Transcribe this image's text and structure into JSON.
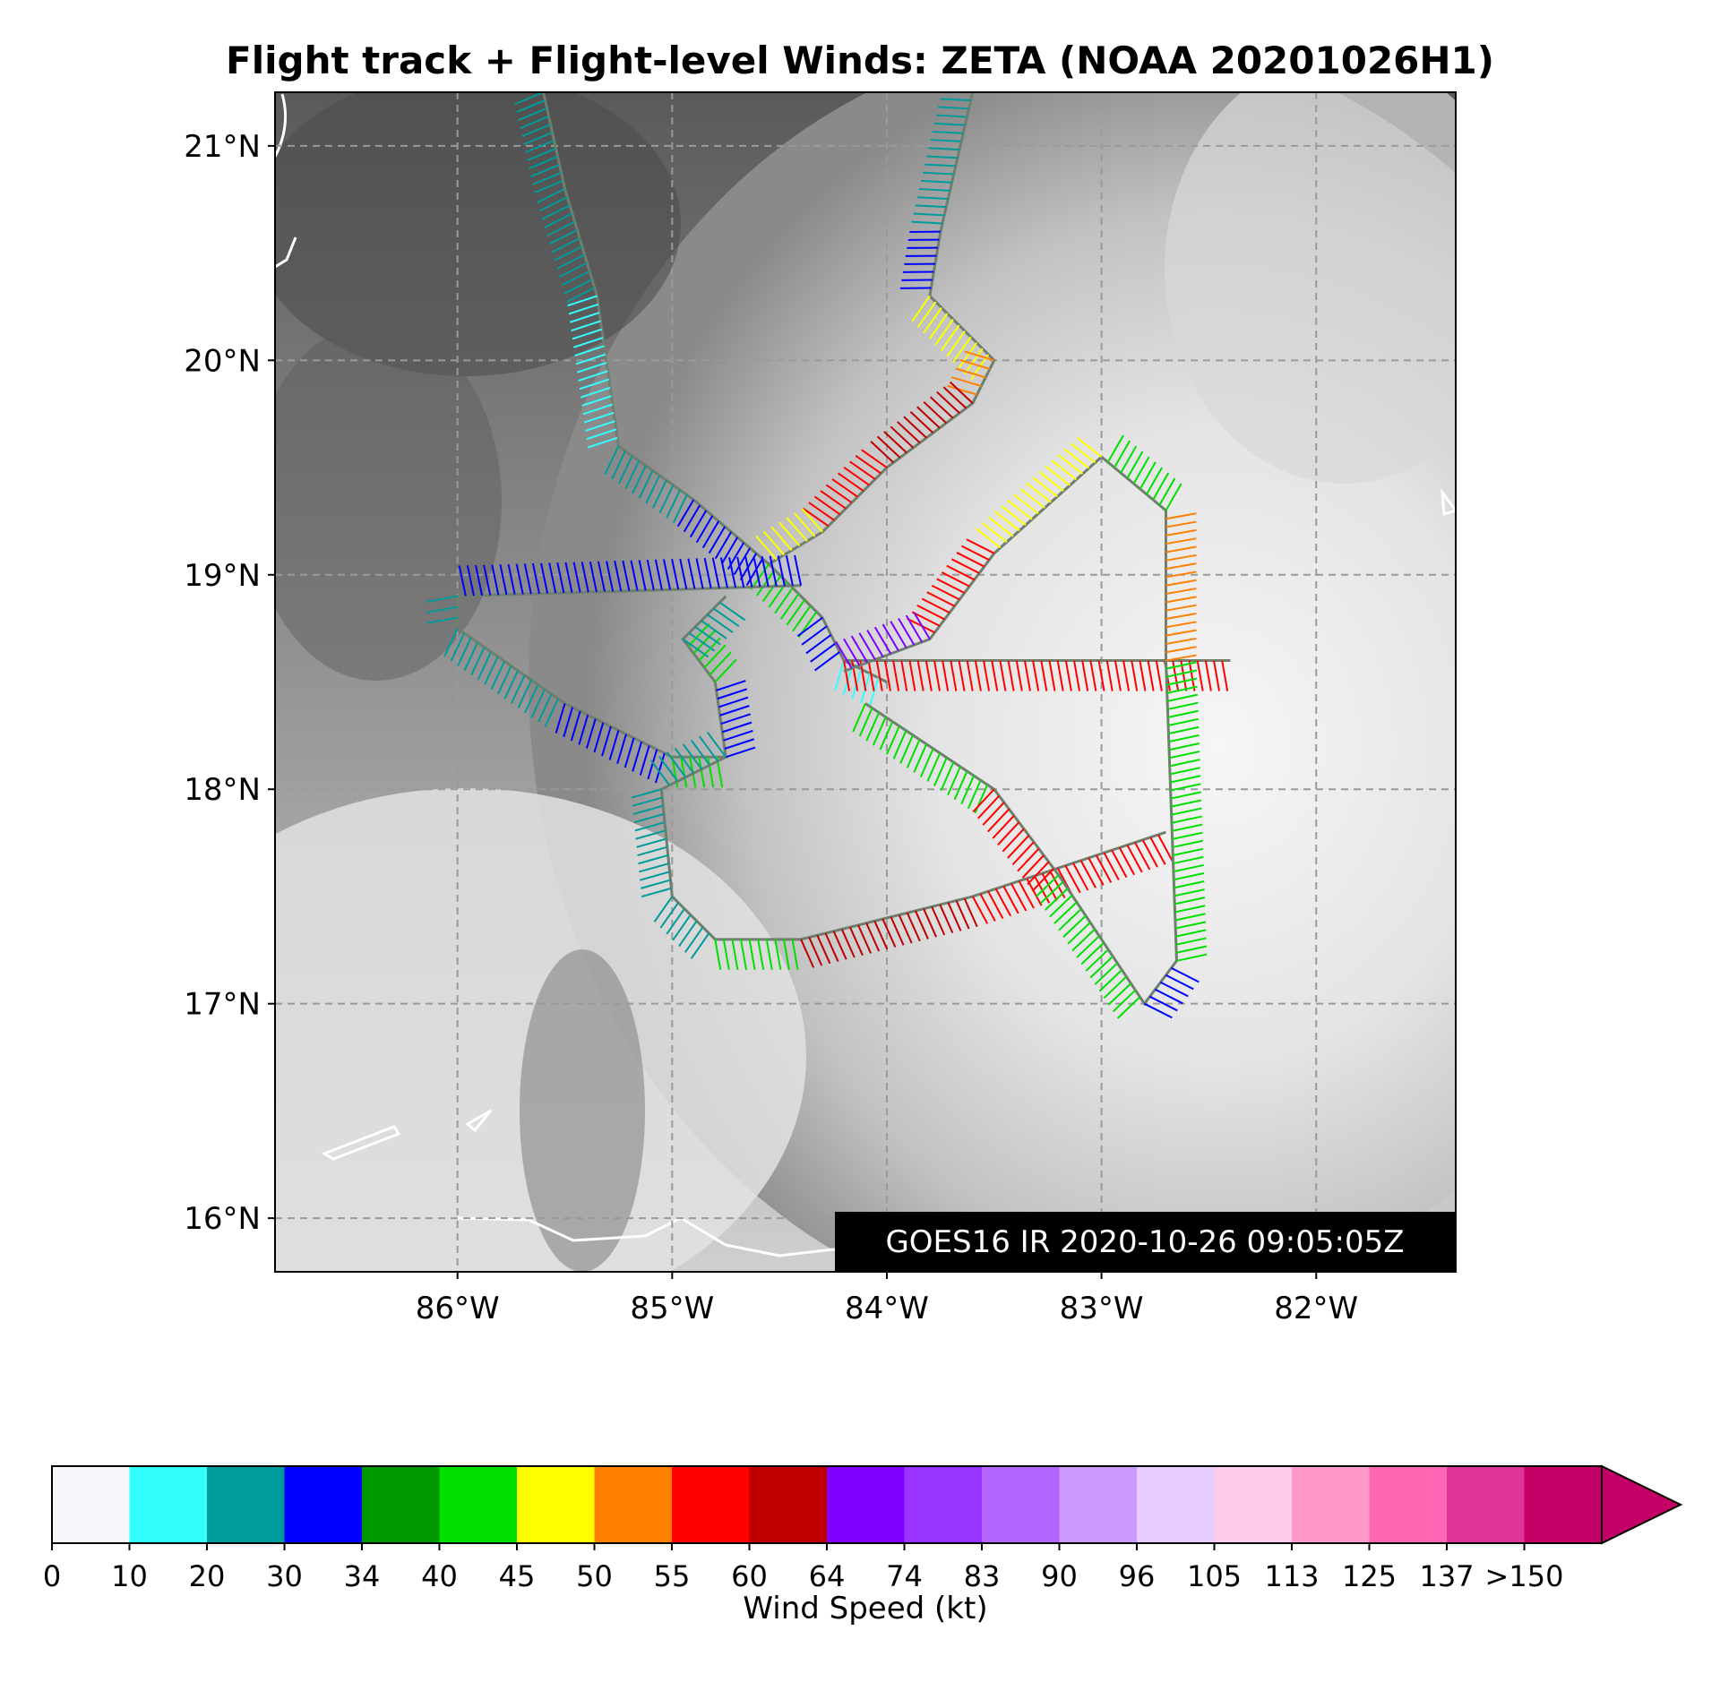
{
  "title": "Flight track + Flight-level Winds: ZETA (NOAA 20201026H1)",
  "map": {
    "lon_range": [
      -86.85,
      -81.35
    ],
    "lat_range": [
      15.75,
      21.25
    ],
    "lat_ticks": [
      {
        "value": 16,
        "label": "16°N"
      },
      {
        "value": 17,
        "label": "17°N"
      },
      {
        "value": 18,
        "label": "18°N"
      },
      {
        "value": 19,
        "label": "19°N"
      },
      {
        "value": 20,
        "label": "20°N"
      },
      {
        "value": 21,
        "label": "21°N"
      }
    ],
    "lon_ticks": [
      {
        "value": -86,
        "label": "86°W"
      },
      {
        "value": -85,
        "label": "85°W"
      },
      {
        "value": -84,
        "label": "84°W"
      },
      {
        "value": -83,
        "label": "83°W"
      },
      {
        "value": -82,
        "label": "82°W"
      }
    ],
    "gridlines": "dashed",
    "background": "GOES16 infrared satellite imagery (grayscale)",
    "stamp": "GOES16 IR 2020-10-26 09:05:05Z"
  },
  "flight_track": {
    "segments": [
      {
        "points": [
          [
            -85.6,
            21.25
          ],
          [
            -85.5,
            20.8
          ],
          [
            -85.35,
            20.3
          ],
          [
            -85.25,
            19.6
          ],
          [
            -84.9,
            19.35
          ],
          [
            -84.55,
            19.05
          ],
          [
            -84.3,
            18.8
          ],
          [
            -84.2,
            18.6
          ],
          [
            -84.0,
            18.5
          ]
        ],
        "speeds": [
          20,
          20,
          10,
          20,
          30,
          40,
          30,
          10
        ]
      },
      {
        "points": [
          [
            -83.6,
            21.25
          ],
          [
            -83.75,
            20.6
          ],
          [
            -83.8,
            20.3
          ],
          [
            -83.5,
            20.0
          ],
          [
            -83.6,
            19.8
          ],
          [
            -84.0,
            19.5
          ],
          [
            -84.3,
            19.2
          ],
          [
            -84.55,
            19.05
          ]
        ],
        "speeds": [
          20,
          30,
          45,
          50,
          60,
          55,
          45
        ]
      },
      {
        "points": [
          [
            -84.4,
            18.95
          ],
          [
            -86.0,
            18.9
          ],
          [
            -86.0,
            18.75
          ],
          [
            -85.5,
            18.4
          ],
          [
            -85.0,
            18.15
          ],
          [
            -84.75,
            18.15
          ],
          [
            -84.8,
            18.5
          ],
          [
            -84.95,
            18.7
          ],
          [
            -84.75,
            18.9
          ]
        ],
        "speeds": [
          30,
          20,
          20,
          30,
          40,
          30,
          40,
          20
        ]
      },
      {
        "points": [
          [
            -84.75,
            18.15
          ],
          [
            -85.05,
            18.0
          ],
          [
            -85.0,
            17.5
          ],
          [
            -84.8,
            17.3
          ],
          [
            -84.4,
            17.3
          ],
          [
            -83.6,
            17.5
          ],
          [
            -82.7,
            17.8
          ]
        ],
        "speeds": [
          20,
          20,
          20,
          40,
          60,
          55
        ]
      },
      {
        "points": [
          [
            -84.2,
            18.6
          ],
          [
            -82.4,
            18.6
          ]
        ],
        "speeds": [
          55
        ]
      },
      {
        "points": [
          [
            -84.1,
            18.4
          ],
          [
            -83.5,
            18.0
          ],
          [
            -83.2,
            17.6
          ],
          [
            -82.8,
            17.0
          ],
          [
            -82.65,
            17.2
          ],
          [
            -82.7,
            18.6
          ],
          [
            -82.7,
            19.3
          ],
          [
            -83.0,
            19.55
          ],
          [
            -83.5,
            19.1
          ],
          [
            -83.8,
            18.7
          ],
          [
            -84.2,
            18.55
          ]
        ],
        "speeds": [
          40,
          55,
          40,
          30,
          40,
          50,
          40,
          45,
          55,
          64
        ]
      }
    ],
    "speed_note": "barb colours follow the wind speed colour scale"
  },
  "colorbar": {
    "label": "Wind Speed (kt)",
    "bins": [
      {
        "from": "0",
        "color": "#f7f8fb"
      },
      {
        "from": "10",
        "color": "#33ffff"
      },
      {
        "from": "20",
        "color": "#009b9b"
      },
      {
        "from": "30",
        "color": "#0000ff"
      },
      {
        "from": "34",
        "color": "#009900"
      },
      {
        "from": "40",
        "color": "#00e000"
      },
      {
        "from": "45",
        "color": "#ffff00"
      },
      {
        "from": "50",
        "color": "#ff8000"
      },
      {
        "from": "55",
        "color": "#ff0000"
      },
      {
        "from": "60",
        "color": "#c00000"
      },
      {
        "from": "64",
        "color": "#8000ff"
      },
      {
        "from": "74",
        "color": "#9933ff"
      },
      {
        "from": "83",
        "color": "#b366ff"
      },
      {
        "from": "90",
        "color": "#cc99ff"
      },
      {
        "from": "96",
        "color": "#e6ccff"
      },
      {
        "from": "105",
        "color": "#ffccee"
      },
      {
        "from": "113",
        "color": "#ff99cc"
      },
      {
        "from": "125",
        "color": "#ff66b3"
      },
      {
        "from": "137",
        "color": "#e03399"
      },
      {
        "from": ">150",
        "color": "#c40066"
      }
    ],
    "tick_labels": [
      "0",
      "10",
      "20",
      "30",
      "34",
      "40",
      "45",
      "50",
      "55",
      "60",
      "64",
      "74",
      "83",
      "90",
      "96",
      "105",
      "113",
      "125",
      "137",
      ">150"
    ]
  }
}
